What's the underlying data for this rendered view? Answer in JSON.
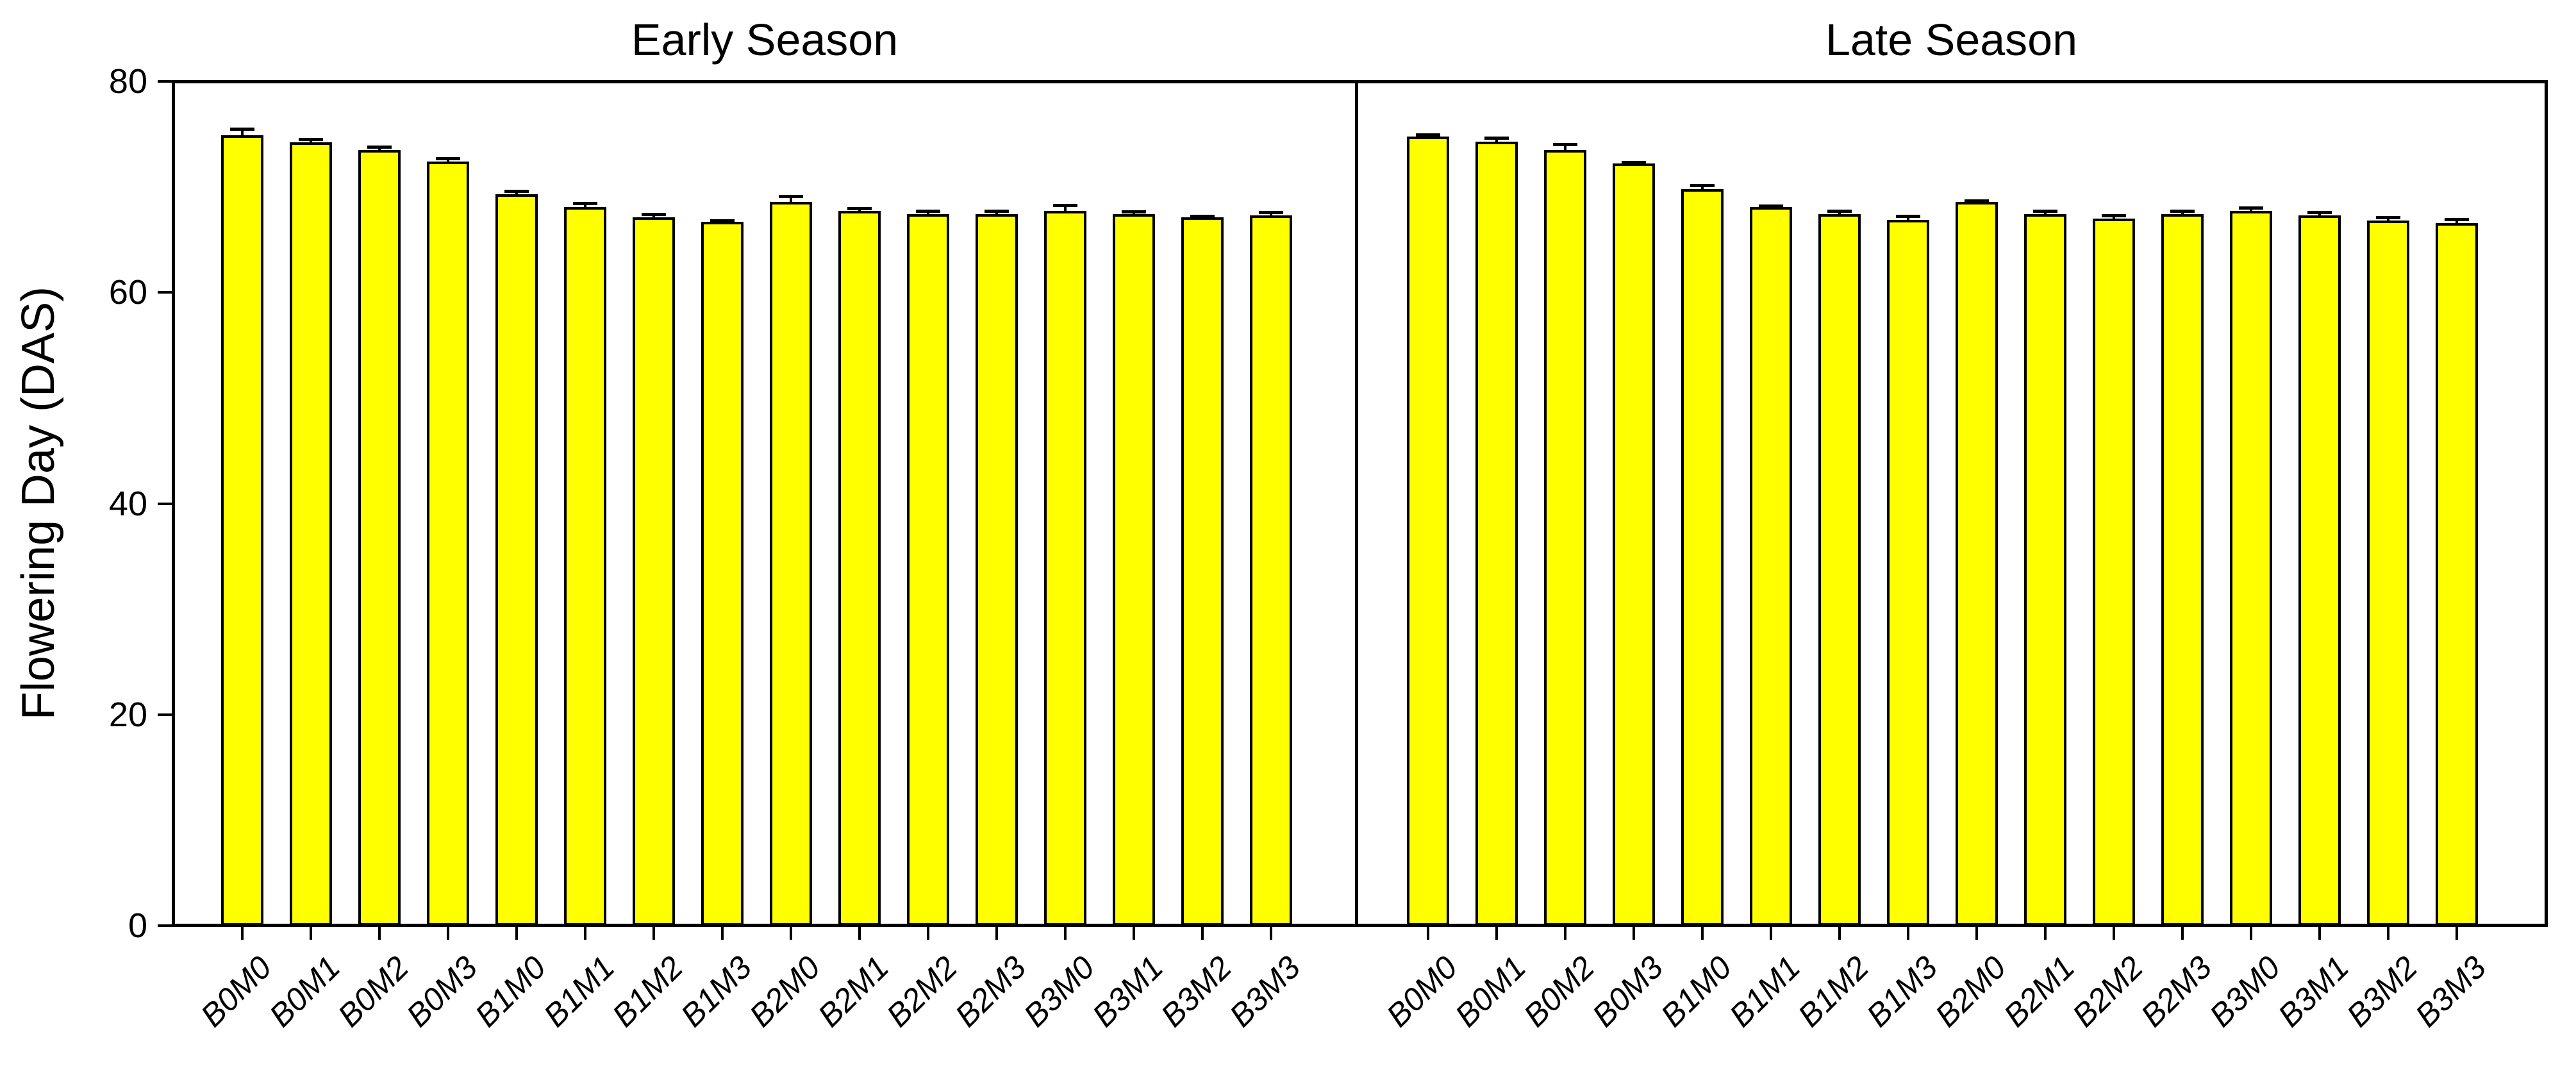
{
  "figure": {
    "background": "#ffffff",
    "line_color": "#000000"
  },
  "chart_data": {
    "type": "bar",
    "title": "",
    "ylabel": "Flowering Day (DAS)",
    "xlabel": "",
    "ylim": [
      0,
      80
    ],
    "yticks": [
      "0",
      "20",
      "40",
      "60",
      "80"
    ],
    "ytick_values": [
      0,
      20,
      40,
      60,
      80
    ],
    "grid": "off",
    "legend": "none",
    "bar_color": "#FFFF00",
    "bar_edge_color": "#000000",
    "error_bars": "se, cap style, upward only",
    "categories": [
      "B0M0",
      "B0M1",
      "B0M2",
      "B0M3",
      "B1M0",
      "B1M1",
      "B1M2",
      "B1M3",
      "B2M0",
      "B2M1",
      "B2M2",
      "B2M3",
      "B3M0",
      "B3M1",
      "B3M2",
      "B3M3"
    ],
    "panels": [
      {
        "title": "Early Season",
        "values": [
          74.9,
          74.2,
          73.5,
          72.4,
          69.3,
          68.1,
          67.1,
          66.7,
          68.6,
          67.7,
          67.4,
          67.4,
          67.7,
          67.4,
          67.1,
          67.3
        ],
        "errors": [
          0.6,
          0.3,
          0.3,
          0.3,
          0.3,
          0.35,
          0.3,
          0.1,
          0.5,
          0.25,
          0.3,
          0.3,
          0.55,
          0.25,
          0.1,
          0.25
        ]
      },
      {
        "title": "Late Season",
        "values": [
          74.8,
          74.3,
          73.5,
          72.2,
          69.8,
          68.1,
          67.4,
          66.9,
          68.6,
          67.4,
          67.0,
          67.4,
          67.7,
          67.3,
          66.8,
          66.6
        ],
        "errors": [
          0.1,
          0.35,
          0.5,
          0.1,
          0.3,
          0.1,
          0.3,
          0.3,
          0.1,
          0.3,
          0.3,
          0.3,
          0.3,
          0.25,
          0.3,
          0.3
        ]
      }
    ]
  }
}
